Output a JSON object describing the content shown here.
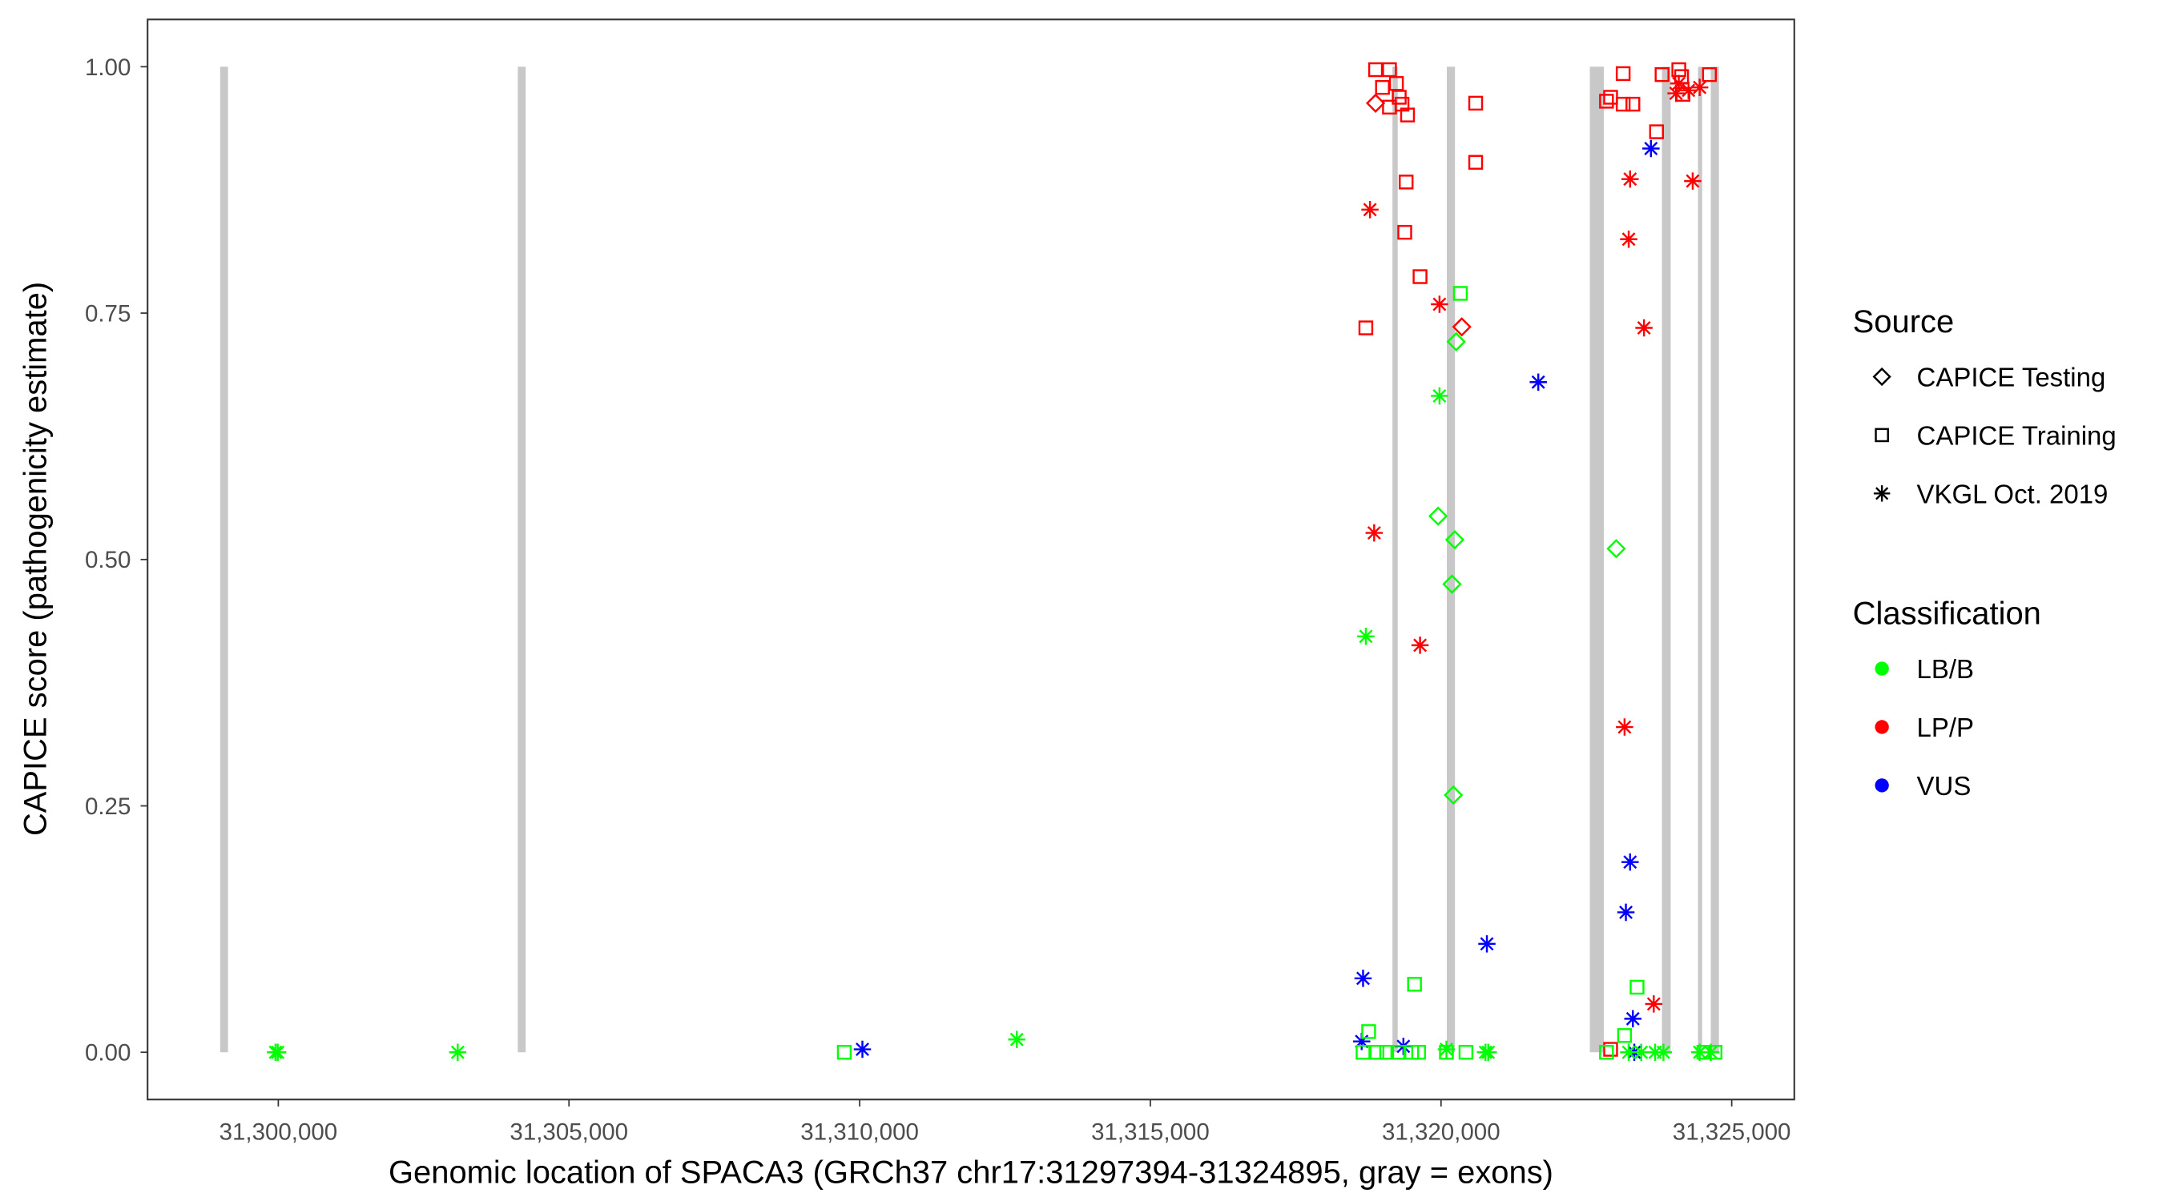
{
  "chart_data": {
    "type": "scatter",
    "title": "",
    "xlabel": "Genomic location of SPACA3 (GRCh37 chr17:31297394-31324895, gray = exons)",
    "ylabel": "CAPICE score (pathogenicity estimate)",
    "xlim": [
      31296650,
      31326000
    ],
    "ylim": [
      -0.047,
      1.047
    ],
    "x_ticks": [
      31300000,
      31305000,
      31310000,
      31315000,
      31320000,
      31325000
    ],
    "x_tick_labels": [
      "31,300,000",
      "31,305,000",
      "31,310,000",
      "31,315,000",
      "31,320,000",
      "31,325,000"
    ],
    "y_ticks": [
      0,
      0.25,
      0.5,
      0.75,
      1.0
    ],
    "y_tick_labels": [
      "0.00",
      "0.25",
      "0.50",
      "0.75",
      "1.00"
    ],
    "grid": false,
    "exons": [
      [
        31299000,
        31299135
      ],
      [
        31304120,
        31304255
      ],
      [
        31319165,
        31319255
      ],
      [
        31320100,
        31320240
      ],
      [
        31322560,
        31322800
      ],
      [
        31323800,
        31323950
      ],
      [
        31324420,
        31324480
      ],
      [
        31324640,
        31324780
      ]
    ],
    "exon_color": "#c8c8c8",
    "legend": {
      "placement": "right",
      "source_title": "Source",
      "source_items": [
        {
          "label": "CAPICE Testing",
          "shape": "diamond"
        },
        {
          "label": "CAPICE Training",
          "shape": "square"
        },
        {
          "label": "VKGL Oct. 2019",
          "shape": "asterisk"
        }
      ],
      "class_title": "Classification",
      "class_items": [
        {
          "label": "LB/B",
          "color": "#00ff00"
        },
        {
          "label": "LP/P",
          "color": "#ff0000"
        },
        {
          "label": "VUS",
          "color": "#0000ff"
        }
      ]
    },
    "point_fields": [
      "position",
      "score",
      "source_index",
      "class_index"
    ],
    "points": [
      [
        31299952,
        0,
        2,
        0
      ],
      [
        31299990,
        0,
        2,
        0
      ],
      [
        31303086,
        0,
        2,
        0
      ],
      [
        31309736,
        0,
        1,
        0
      ],
      [
        31310047,
        0.003,
        2,
        2
      ],
      [
        31312703,
        0.013,
        2,
        0
      ],
      [
        31318874,
        0.997,
        1,
        1
      ],
      [
        31319113,
        0.997,
        1,
        1
      ],
      [
        31318993,
        0.979,
        1,
        1
      ],
      [
        31319233,
        0.983,
        1,
        1
      ],
      [
        31319281,
        0.969,
        1,
        1
      ],
      [
        31319113,
        0.959,
        1,
        1
      ],
      [
        31319329,
        0.962,
        1,
        1
      ],
      [
        31319424,
        0.951,
        1,
        1
      ],
      [
        31320596,
        0.963,
        1,
        1
      ],
      [
        31320596,
        0.903,
        1,
        1
      ],
      [
        31319400,
        0.883,
        1,
        1
      ],
      [
        31319376,
        0.832,
        1,
        1
      ],
      [
        31319639,
        0.787,
        1,
        1
      ],
      [
        31318707,
        0.735,
        1,
        1
      ],
      [
        31318874,
        0.963,
        0,
        1
      ],
      [
        31320357,
        0.736,
        0,
        1
      ],
      [
        31318778,
        0.855,
        2,
        1
      ],
      [
        31319974,
        0.759,
        2,
        1
      ],
      [
        31318850,
        0.527,
        2,
        1
      ],
      [
        31319639,
        0.413,
        2,
        1
      ],
      [
        31320333,
        0.77,
        1,
        0
      ],
      [
        31320261,
        0.721,
        0,
        0
      ],
      [
        31319974,
        0.666,
        2,
        0
      ],
      [
        31319950,
        0.544,
        0,
        0
      ],
      [
        31320237,
        0.52,
        0,
        0
      ],
      [
        31320189,
        0.475,
        0,
        0
      ],
      [
        31320213,
        0.261,
        0,
        0
      ],
      [
        31318707,
        0.422,
        2,
        0
      ],
      [
        31321673,
        0.68,
        2,
        2
      ],
      [
        31318659,
        0.075,
        2,
        2
      ],
      [
        31320789,
        0.11,
        2,
        2
      ],
      [
        31318635,
        0.011,
        2,
        2
      ],
      [
        31319353,
        0.006,
        2,
        2
      ],
      [
        31319544,
        0.069,
        1,
        0
      ],
      [
        31318755,
        0.021,
        1,
        0
      ],
      [
        31318659,
        0,
        1,
        0
      ],
      [
        31318898,
        0,
        1,
        0
      ],
      [
        31319065,
        0,
        1,
        0
      ],
      [
        31319257,
        0,
        1,
        0
      ],
      [
        31319496,
        0,
        1,
        0
      ],
      [
        31319615,
        0,
        1,
        0
      ],
      [
        31320093,
        0,
        1,
        0
      ],
      [
        31320429,
        0,
        1,
        0
      ],
      [
        31320093,
        0.003,
        2,
        0
      ],
      [
        31320765,
        0,
        2,
        0
      ],
      [
        31320812,
        0,
        2,
        0
      ],
      [
        31323133,
        0.993,
        1,
        1
      ],
      [
        31322917,
        0.969,
        1,
        1
      ],
      [
        31322846,
        0.965,
        1,
        1
      ],
      [
        31323133,
        0.962,
        1,
        1
      ],
      [
        31323300,
        0.962,
        1,
        1
      ],
      [
        31323802,
        0.992,
        1,
        1
      ],
      [
        31324090,
        0.997,
        1,
        1
      ],
      [
        31324138,
        0.99,
        1,
        1
      ],
      [
        31324162,
        0.972,
        1,
        1
      ],
      [
        31324617,
        0.992,
        1,
        1
      ],
      [
        31323707,
        0.934,
        1,
        1
      ],
      [
        31322917,
        0.003,
        1,
        1
      ],
      [
        31324090,
        0.983,
        2,
        1
      ],
      [
        31324042,
        0.973,
        2,
        1
      ],
      [
        31324257,
        0.976,
        2,
        1
      ],
      [
        31324449,
        0.979,
        2,
        1
      ],
      [
        31323252,
        0.886,
        2,
        1
      ],
      [
        31323228,
        0.825,
        2,
        1
      ],
      [
        31323491,
        0.735,
        2,
        1
      ],
      [
        31324329,
        0.884,
        2,
        1
      ],
      [
        31323157,
        0.33,
        2,
        1
      ],
      [
        31323659,
        0.049,
        2,
        1
      ],
      [
        31323611,
        0.917,
        2,
        2
      ],
      [
        31323252,
        0.193,
        2,
        2
      ],
      [
        31323180,
        0.142,
        2,
        2
      ],
      [
        31323300,
        0.034,
        2,
        2
      ],
      [
        31323324,
        0,
        2,
        2
      ],
      [
        31323013,
        0.511,
        0,
        0
      ],
      [
        31323372,
        0.066,
        1,
        0
      ],
      [
        31323157,
        0.017,
        1,
        0
      ],
      [
        31322846,
        0,
        1,
        0
      ],
      [
        31324521,
        0,
        1,
        0
      ],
      [
        31324713,
        0,
        1,
        0
      ],
      [
        31323228,
        0,
        2,
        0
      ],
      [
        31323444,
        0,
        2,
        0
      ],
      [
        31323683,
        0,
        2,
        0
      ],
      [
        31323826,
        0,
        2,
        0
      ],
      [
        31324641,
        0,
        2,
        0
      ],
      [
        31324449,
        0,
        2,
        0
      ]
    ]
  }
}
